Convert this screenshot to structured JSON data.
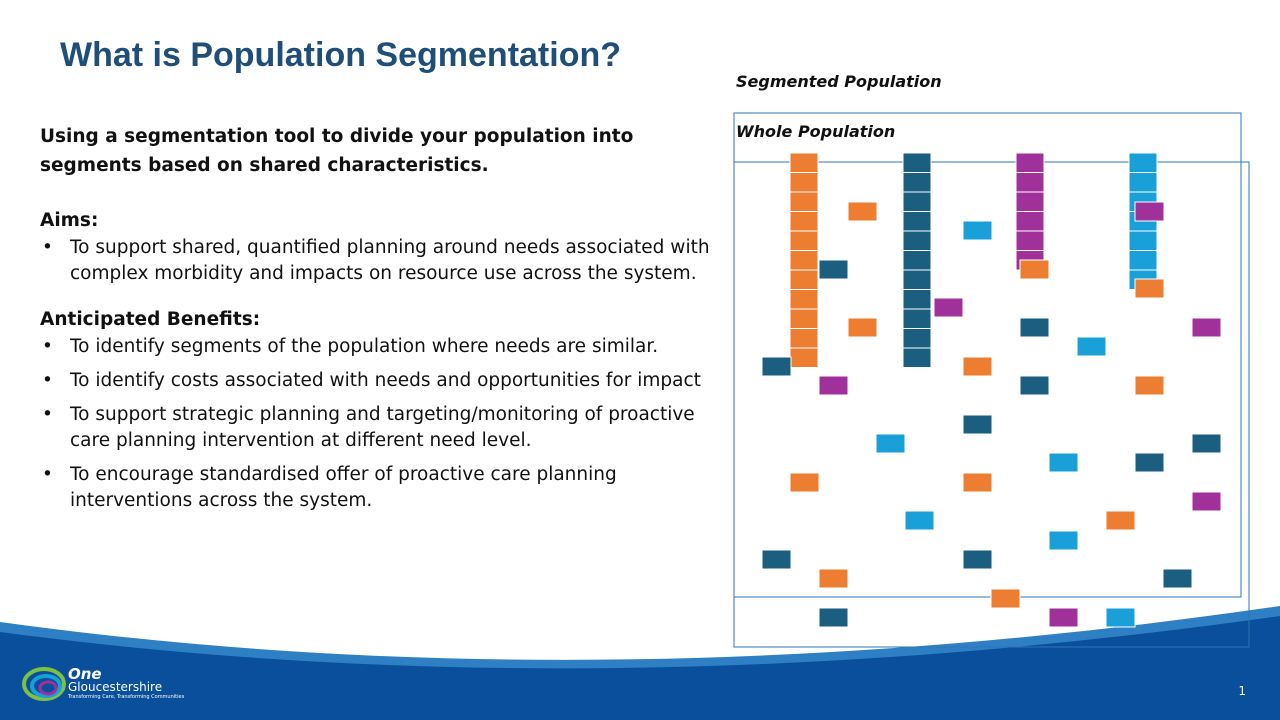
{
  "header": {
    "title": "What is Population Segmentation?"
  },
  "body": {
    "intro": "Using a segmentation tool to divide your population into segments based on shared characteristics.",
    "aims_heading": "Aims:",
    "aims": [
      "To support shared, quantified planning around needs associated with complex morbidity and impacts on resource use across the system."
    ],
    "benefits_heading": "Anticipated Benefits:",
    "benefits": [
      "To identify segments of the population where needs are similar.",
      "To identify costs associated with needs and opportunities for impact",
      "To support strategic planning and targeting/monitoring of proactive care planning intervention at different need level.",
      "To encourage standardised offer of proactive care planning interventions across the system."
    ]
  },
  "diagram": {
    "segmented_label": "Segmented Population",
    "whole_label": "Whole Population"
  },
  "footer": {
    "logo_name": "One",
    "logo_place": "Gloucestershire",
    "logo_tagline": "Transforming Care, Transforming Communities",
    "page_number": "1"
  }
}
